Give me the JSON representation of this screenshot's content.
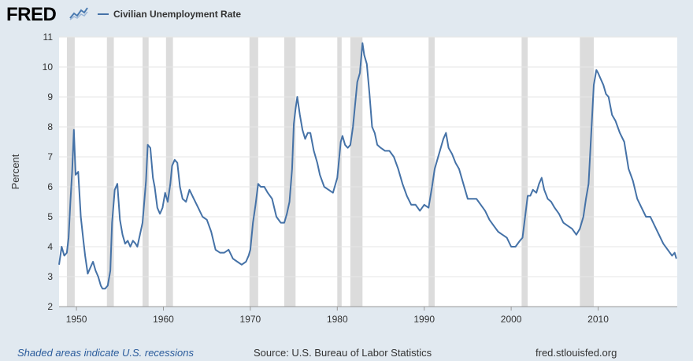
{
  "brand": {
    "name": "FRED",
    "logo_icon": "line-chart-icon"
  },
  "legend": {
    "label": "Civilian Unemployment Rate",
    "color": "#4572a7"
  },
  "footer": {
    "recession_note": "Shaded areas indicate U.S. recessions",
    "source": "Source: U.S. Bureau of Labor Statistics",
    "site": "fred.stlouisfed.org"
  },
  "chart_data": {
    "type": "line",
    "title": "",
    "xlabel": "",
    "ylabel": "Percent",
    "xlim": [
      1948.0,
      2019.1
    ],
    "ylim": [
      2,
      11
    ],
    "xticks": [
      1950,
      1960,
      1970,
      1980,
      1990,
      2000,
      2010
    ],
    "yticks": [
      2,
      3,
      4,
      5,
      6,
      7,
      8,
      9,
      10,
      11
    ],
    "grid": true,
    "legend_position": "top-left",
    "colors": {
      "line": "#4572a7",
      "recession": "#dcdcdc",
      "plot_bg": "#ffffff",
      "grid": "#e6e6e6"
    },
    "recessions": [
      [
        1948.9,
        1949.8
      ],
      [
        1953.5,
        1954.3
      ],
      [
        1957.6,
        1958.3
      ],
      [
        1960.3,
        1961.1
      ],
      [
        1969.9,
        1970.9
      ],
      [
        1973.9,
        1975.2
      ],
      [
        1980.0,
        1980.5
      ],
      [
        1981.5,
        1982.9
      ],
      [
        1990.5,
        1991.2
      ],
      [
        2001.2,
        2001.9
      ],
      [
        2007.9,
        2009.5
      ]
    ],
    "series": [
      {
        "name": "Civilian Unemployment Rate",
        "x": [
          1948.0,
          1948.3,
          1948.6,
          1948.9,
          1949.1,
          1949.3,
          1949.5,
          1949.7,
          1949.9,
          1950.2,
          1950.5,
          1950.8,
          1951.0,
          1951.3,
          1951.6,
          1951.9,
          1952.2,
          1952.5,
          1952.8,
          1953.0,
          1953.3,
          1953.6,
          1953.9,
          1954.1,
          1954.4,
          1954.7,
          1955.0,
          1955.3,
          1955.6,
          1955.9,
          1956.2,
          1956.5,
          1956.8,
          1957.0,
          1957.3,
          1957.6,
          1957.8,
          1958.0,
          1958.2,
          1958.5,
          1958.8,
          1959.0,
          1959.3,
          1959.6,
          1959.9,
          1960.2,
          1960.5,
          1960.8,
          1961.0,
          1961.3,
          1961.6,
          1961.9,
          1962.2,
          1962.6,
          1963.0,
          1963.5,
          1964.0,
          1964.5,
          1965.0,
          1965.5,
          1966.0,
          1966.5,
          1967.0,
          1967.5,
          1968.0,
          1968.5,
          1969.0,
          1969.5,
          1969.8,
          1970.0,
          1970.3,
          1970.6,
          1970.9,
          1971.2,
          1971.6,
          1972.0,
          1972.5,
          1973.0,
          1973.5,
          1973.9,
          1974.2,
          1974.5,
          1974.8,
          1975.0,
          1975.2,
          1975.4,
          1975.7,
          1976.0,
          1976.3,
          1976.6,
          1976.9,
          1977.3,
          1977.7,
          1978.0,
          1978.5,
          1979.0,
          1979.5,
          1980.0,
          1980.2,
          1980.4,
          1980.6,
          1980.9,
          1981.2,
          1981.5,
          1981.8,
          1982.0,
          1982.3,
          1982.6,
          1982.9,
          1983.1,
          1983.4,
          1983.7,
          1984.0,
          1984.3,
          1984.6,
          1985.0,
          1985.5,
          1986.0,
          1986.5,
          1987.0,
          1987.5,
          1988.0,
          1988.5,
          1989.0,
          1989.5,
          1990.0,
          1990.5,
          1990.9,
          1991.2,
          1991.5,
          1991.9,
          1992.2,
          1992.5,
          1992.8,
          1993.2,
          1993.6,
          1994.0,
          1994.5,
          1995.0,
          1995.5,
          1996.0,
          1996.5,
          1997.0,
          1997.5,
          1998.0,
          1998.5,
          1999.0,
          1999.5,
          2000.0,
          2000.5,
          2001.0,
          2001.3,
          2001.6,
          2001.9,
          2002.2,
          2002.5,
          2002.9,
          2003.2,
          2003.5,
          2003.8,
          2004.2,
          2004.6,
          2005.0,
          2005.5,
          2006.0,
          2006.5,
          2007.0,
          2007.5,
          2007.9,
          2008.3,
          2008.6,
          2008.9,
          2009.1,
          2009.3,
          2009.5,
          2009.8,
          2010.0,
          2010.3,
          2010.6,
          2010.9,
          2011.2,
          2011.6,
          2012.0,
          2012.5,
          2013.0,
          2013.5,
          2014.0,
          2014.5,
          2015.0,
          2015.5,
          2016.0,
          2016.5,
          2017.0,
          2017.5,
          2018.0,
          2018.5,
          2018.8,
          2019.0
        ],
        "y": [
          3.4,
          4.0,
          3.7,
          3.8,
          4.3,
          5.5,
          6.5,
          7.9,
          6.4,
          6.5,
          5.0,
          4.2,
          3.7,
          3.1,
          3.3,
          3.5,
          3.2,
          3.0,
          2.7,
          2.6,
          2.6,
          2.7,
          3.2,
          4.8,
          5.9,
          6.1,
          4.9,
          4.4,
          4.1,
          4.2,
          4.0,
          4.2,
          4.1,
          4.0,
          4.4,
          4.8,
          5.5,
          6.2,
          7.4,
          7.3,
          6.3,
          6.0,
          5.3,
          5.1,
          5.3,
          5.8,
          5.5,
          6.1,
          6.7,
          6.9,
          6.8,
          6.0,
          5.6,
          5.5,
          5.9,
          5.6,
          5.3,
          5.0,
          4.9,
          4.5,
          3.9,
          3.8,
          3.8,
          3.9,
          3.6,
          3.5,
          3.4,
          3.5,
          3.7,
          3.9,
          4.8,
          5.4,
          6.1,
          6.0,
          6.0,
          5.8,
          5.6,
          5.0,
          4.8,
          4.8,
          5.1,
          5.5,
          6.6,
          8.1,
          8.6,
          9.0,
          8.4,
          7.9,
          7.6,
          7.8,
          7.8,
          7.2,
          6.8,
          6.4,
          6.0,
          5.9,
          5.8,
          6.3,
          6.9,
          7.5,
          7.7,
          7.4,
          7.3,
          7.4,
          8.0,
          8.6,
          9.5,
          9.8,
          10.8,
          10.4,
          10.1,
          9.1,
          8.0,
          7.8,
          7.4,
          7.3,
          7.2,
          7.2,
          7.0,
          6.6,
          6.1,
          5.7,
          5.4,
          5.4,
          5.2,
          5.4,
          5.3,
          6.0,
          6.6,
          6.9,
          7.3,
          7.6,
          7.8,
          7.3,
          7.1,
          6.8,
          6.6,
          6.1,
          5.6,
          5.6,
          5.6,
          5.4,
          5.2,
          4.9,
          4.7,
          4.5,
          4.4,
          4.3,
          4.0,
          4.0,
          4.2,
          4.3,
          5.0,
          5.7,
          5.7,
          5.9,
          5.8,
          6.1,
          6.3,
          5.9,
          5.6,
          5.5,
          5.3,
          5.1,
          4.8,
          4.7,
          4.6,
          4.4,
          4.6,
          5.0,
          5.6,
          6.1,
          7.2,
          8.3,
          9.4,
          9.9,
          9.8,
          9.6,
          9.4,
          9.1,
          9.0,
          8.4,
          8.2,
          7.8,
          7.5,
          6.6,
          6.2,
          5.6,
          5.3,
          5.0,
          5.0,
          4.7,
          4.4,
          4.1,
          3.9,
          3.7,
          3.8,
          3.6
        ]
      }
    ]
  }
}
